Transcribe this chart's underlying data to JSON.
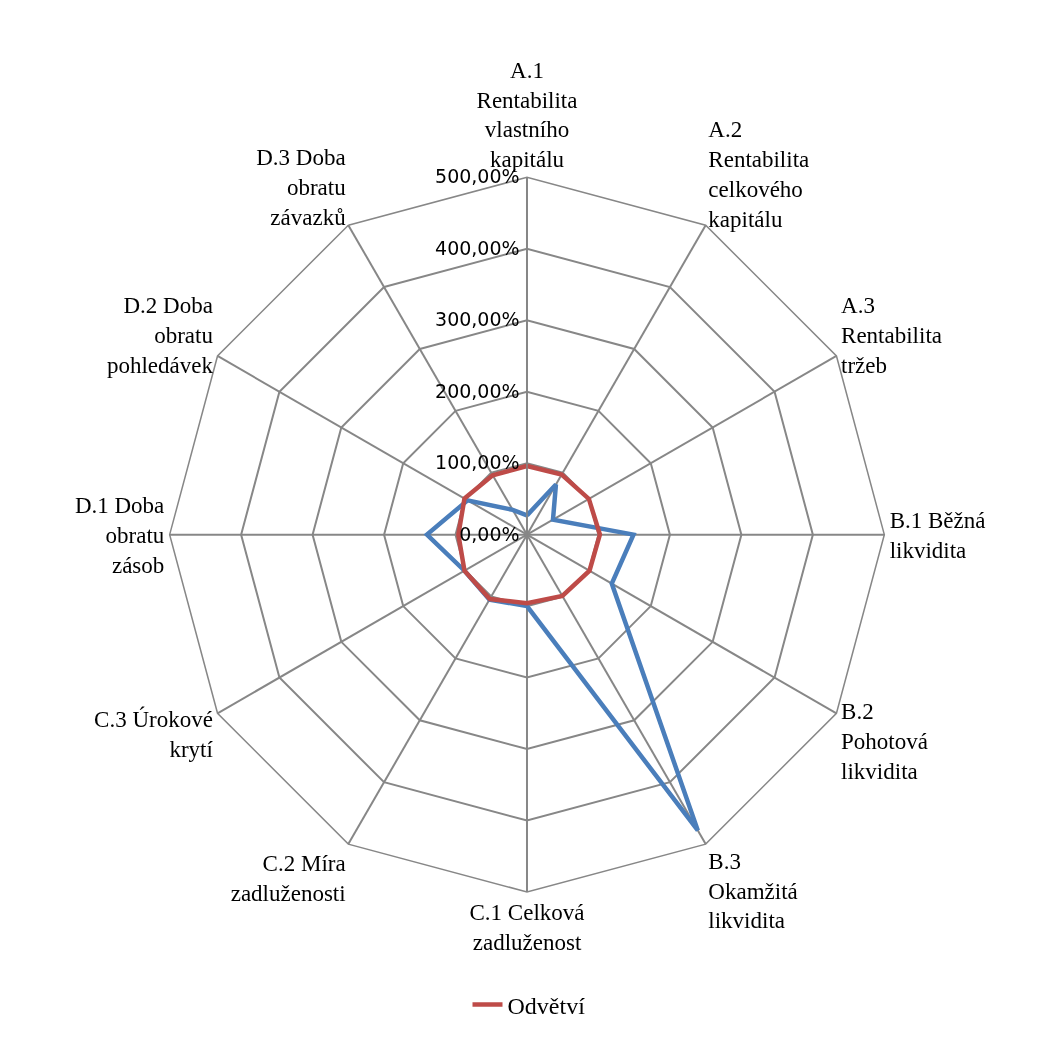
{
  "chart_data": {
    "type": "radar",
    "categories": [
      "A.1 Rentabilita vlastního kapitálu",
      "A.2 Rentabilita celkového kapitálu",
      "A.3 Rentabilita tržeb",
      "B.1 Běžná likvidita",
      "B.2 Pohotová likvidita",
      "B.3 Okamžitá likvidita",
      "C.1 Celková zadluženost",
      "C.2 Míra zadluženosti",
      "C.3 Úrokové krytí",
      "D.1 Doba obratu zásob",
      "D.2 Doba obratu pohledávek",
      "D.3 Doba obratu závazků"
    ],
    "series": [
      {
        "color": "#4a7ebb",
        "values": [
          27,
          81,
          42,
          149,
          137,
          478,
          100,
          105,
          101,
          140,
          96,
          40
        ]
      },
      {
        "name": "Odvětví",
        "color": "#be4b48",
        "values": [
          96,
          97,
          100,
          102,
          101,
          99,
          96,
          104,
          101,
          96,
          101,
          96
        ]
      }
    ],
    "ylim": [
      0,
      500
    ],
    "yticks": [
      {
        "value": 0,
        "label": "0,00%"
      },
      {
        "value": 100,
        "label": "100,00%"
      },
      {
        "value": 200,
        "label": "200,00%"
      },
      {
        "value": 300,
        "label": "300,00%"
      },
      {
        "value": 400,
        "label": "400,00%"
      },
      {
        "value": 500,
        "label": "500,00%"
      }
    ],
    "grid": true,
    "legend": "bottom",
    "marker": "none",
    "line_style": "solid"
  }
}
